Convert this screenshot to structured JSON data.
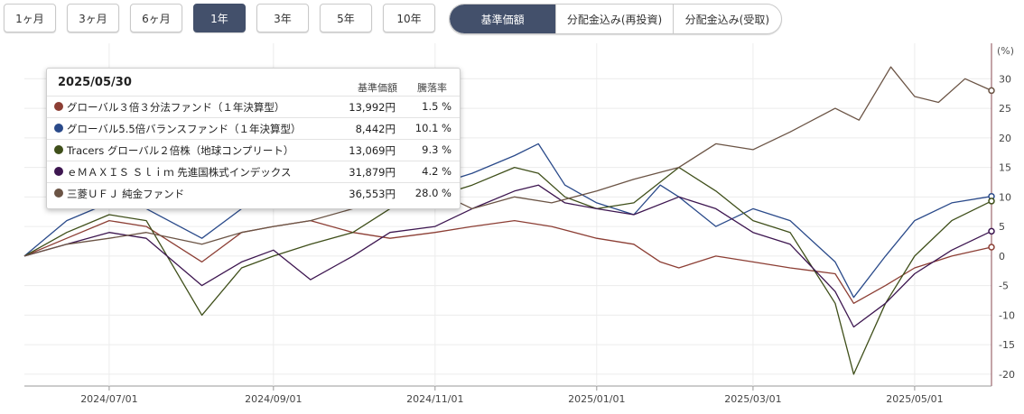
{
  "period_buttons": [
    {
      "label": "1ヶ月",
      "active": false
    },
    {
      "label": "3ヶ月",
      "active": false
    },
    {
      "label": "6ヶ月",
      "active": false
    },
    {
      "label": "1年",
      "active": true
    },
    {
      "label": "3年",
      "active": false
    },
    {
      "label": "5年",
      "active": false
    },
    {
      "label": "10年",
      "active": false
    }
  ],
  "mode_buttons": [
    {
      "label": "基準価額",
      "active": true
    },
    {
      "label": "分配金込み(再投資)",
      "active": false
    },
    {
      "label": "分配金込み(受取)",
      "active": false
    }
  ],
  "tooltip": {
    "date": "2025/05/30",
    "col_price": "基準価額",
    "col_change": "騰落率",
    "rows": [
      {
        "color": "#8c3e34",
        "name": "グローバル３倍３分法ファンド（１年決算型）",
        "price": "13,992円",
        "change": "1.5 %"
      },
      {
        "color": "#2a4a8a",
        "name": "グローバル5.5倍バランスファンド（１年決算型）",
        "price": "8,442円",
        "change": "10.1 %"
      },
      {
        "color": "#3f4f1a",
        "name": "Tracers グローバル２倍株（地球コンプリート）",
        "price": "13,069円",
        "change": "9.3 %"
      },
      {
        "color": "#3d1650",
        "name": "ｅＭＡＸＩＳ Ｓｌｉｍ 先進国株式インデックス",
        "price": "31,879円",
        "change": "4.2 %"
      },
      {
        "color": "#6b5445",
        "name": "三菱ＵＦＪ 純金ファンド",
        "price": "36,553円",
        "change": "28.0 %"
      }
    ]
  },
  "chart_data": {
    "type": "line",
    "y_unit_label": "(%)",
    "ylim": [
      -22,
      36
    ],
    "y_ticks": [
      30,
      25,
      20,
      15,
      10,
      5,
      0,
      -5,
      -10,
      -15,
      -20
    ],
    "x_tick_labels": [
      "2024/07/01",
      "2024/09/01",
      "2024/11/01",
      "2025/01/01",
      "2025/03/01",
      "2025/05/01"
    ],
    "x_range": [
      "2024-05-30",
      "2025-05-30"
    ],
    "grid": true,
    "series": [
      {
        "name": "グローバル３倍３分法ファンド（１年決算型）",
        "color": "#8c3e34",
        "points": [
          [
            "2024-05-30",
            0
          ],
          [
            "2024-06-15",
            3
          ],
          [
            "2024-07-01",
            6
          ],
          [
            "2024-07-15",
            5
          ],
          [
            "2024-08-05",
            -1
          ],
          [
            "2024-08-20",
            4
          ],
          [
            "2024-09-01",
            5
          ],
          [
            "2024-09-15",
            6
          ],
          [
            "2024-10-01",
            4
          ],
          [
            "2024-10-15",
            3
          ],
          [
            "2024-11-01",
            4
          ],
          [
            "2024-11-15",
            5
          ],
          [
            "2024-12-01",
            6
          ],
          [
            "2024-12-15",
            5
          ],
          [
            "2025-01-01",
            3
          ],
          [
            "2025-01-15",
            2
          ],
          [
            "2025-01-25",
            -1
          ],
          [
            "2025-02-01",
            -2
          ],
          [
            "2025-02-15",
            0
          ],
          [
            "2025-03-01",
            -1
          ],
          [
            "2025-03-15",
            -2
          ],
          [
            "2025-04-01",
            -3
          ],
          [
            "2025-04-08",
            -8
          ],
          [
            "2025-04-20",
            -5
          ],
          [
            "2025-05-01",
            -2
          ],
          [
            "2025-05-15",
            0
          ],
          [
            "2025-05-30",
            1.5
          ]
        ]
      },
      {
        "name": "グローバル5.5倍バランスファンド（１年決算型）",
        "color": "#2a4a8a",
        "points": [
          [
            "2024-05-30",
            0
          ],
          [
            "2024-06-15",
            6
          ],
          [
            "2024-07-01",
            9
          ],
          [
            "2024-07-15",
            8
          ],
          [
            "2024-08-05",
            3
          ],
          [
            "2024-08-20",
            8
          ],
          [
            "2024-09-01",
            9
          ],
          [
            "2024-09-15",
            10
          ],
          [
            "2024-10-01",
            12
          ],
          [
            "2024-10-15",
            13
          ],
          [
            "2024-11-01",
            12
          ],
          [
            "2024-11-15",
            14
          ],
          [
            "2024-12-01",
            17
          ],
          [
            "2024-12-10",
            19
          ],
          [
            "2024-12-20",
            12
          ],
          [
            "2025-01-01",
            9
          ],
          [
            "2025-01-15",
            7
          ],
          [
            "2025-01-25",
            12
          ],
          [
            "2025-02-01",
            10
          ],
          [
            "2025-02-15",
            5
          ],
          [
            "2025-03-01",
            8
          ],
          [
            "2025-03-15",
            6
          ],
          [
            "2025-04-01",
            -1
          ],
          [
            "2025-04-08",
            -7
          ],
          [
            "2025-04-20",
            0
          ],
          [
            "2025-05-01",
            6
          ],
          [
            "2025-05-15",
            9
          ],
          [
            "2025-05-30",
            10.1
          ]
        ]
      },
      {
        "name": "Tracers グローバル２倍株（地球コンプリート）",
        "color": "#3f4f1a",
        "points": [
          [
            "2024-05-30",
            0
          ],
          [
            "2024-06-15",
            4
          ],
          [
            "2024-07-01",
            7
          ],
          [
            "2024-07-15",
            6
          ],
          [
            "2024-08-05",
            -10
          ],
          [
            "2024-08-20",
            -2
          ],
          [
            "2024-09-01",
            0
          ],
          [
            "2024-09-15",
            2
          ],
          [
            "2024-10-01",
            4
          ],
          [
            "2024-10-15",
            8
          ],
          [
            "2024-11-01",
            10
          ],
          [
            "2024-11-15",
            12
          ],
          [
            "2024-12-01",
            15
          ],
          [
            "2024-12-10",
            14
          ],
          [
            "2024-12-20",
            10
          ],
          [
            "2025-01-01",
            8
          ],
          [
            "2025-01-15",
            9
          ],
          [
            "2025-02-01",
            15
          ],
          [
            "2025-02-15",
            11
          ],
          [
            "2025-03-01",
            6
          ],
          [
            "2025-03-15",
            4
          ],
          [
            "2025-04-01",
            -8
          ],
          [
            "2025-04-08",
            -20
          ],
          [
            "2025-04-20",
            -8
          ],
          [
            "2025-05-01",
            0
          ],
          [
            "2025-05-15",
            6
          ],
          [
            "2025-05-30",
            9.3
          ]
        ]
      },
      {
        "name": "ｅＭＡＸＩＳ Ｓｌｉｍ 先進国株式インデックス",
        "color": "#3d1650",
        "points": [
          [
            "2024-05-30",
            0
          ],
          [
            "2024-06-15",
            2
          ],
          [
            "2024-07-01",
            4
          ],
          [
            "2024-07-15",
            3
          ],
          [
            "2024-08-05",
            -5
          ],
          [
            "2024-08-20",
            -1
          ],
          [
            "2024-09-01",
            1
          ],
          [
            "2024-09-15",
            -4
          ],
          [
            "2024-10-01",
            0
          ],
          [
            "2024-10-15",
            4
          ],
          [
            "2024-11-01",
            5
          ],
          [
            "2024-11-15",
            8
          ],
          [
            "2024-12-01",
            11
          ],
          [
            "2024-12-10",
            12
          ],
          [
            "2024-12-20",
            9
          ],
          [
            "2025-01-01",
            8
          ],
          [
            "2025-01-15",
            7
          ],
          [
            "2025-02-01",
            10
          ],
          [
            "2025-02-15",
            8
          ],
          [
            "2025-03-01",
            4
          ],
          [
            "2025-03-15",
            2
          ],
          [
            "2025-04-01",
            -6
          ],
          [
            "2025-04-08",
            -12
          ],
          [
            "2025-04-20",
            -8
          ],
          [
            "2025-05-01",
            -3
          ],
          [
            "2025-05-15",
            1
          ],
          [
            "2025-05-30",
            4.2
          ]
        ]
      },
      {
        "name": "三菱ＵＦＪ 純金ファンド",
        "color": "#6b5445",
        "points": [
          [
            "2024-05-30",
            0
          ],
          [
            "2024-06-15",
            2
          ],
          [
            "2024-07-01",
            3
          ],
          [
            "2024-07-15",
            4
          ],
          [
            "2024-08-05",
            2
          ],
          [
            "2024-08-20",
            4
          ],
          [
            "2024-09-01",
            5
          ],
          [
            "2024-09-15",
            6
          ],
          [
            "2024-10-01",
            8
          ],
          [
            "2024-10-15",
            10
          ],
          [
            "2024-11-01",
            11
          ],
          [
            "2024-11-15",
            8
          ],
          [
            "2024-12-01",
            10
          ],
          [
            "2024-12-15",
            9
          ],
          [
            "2025-01-01",
            11
          ],
          [
            "2025-01-15",
            13
          ],
          [
            "2025-02-01",
            15
          ],
          [
            "2025-02-15",
            19
          ],
          [
            "2025-03-01",
            18
          ],
          [
            "2025-03-15",
            21
          ],
          [
            "2025-04-01",
            25
          ],
          [
            "2025-04-10",
            23
          ],
          [
            "2025-04-22",
            32
          ],
          [
            "2025-05-01",
            27
          ],
          [
            "2025-05-10",
            26
          ],
          [
            "2025-05-20",
            30
          ],
          [
            "2025-05-30",
            28.0
          ]
        ]
      }
    ]
  }
}
